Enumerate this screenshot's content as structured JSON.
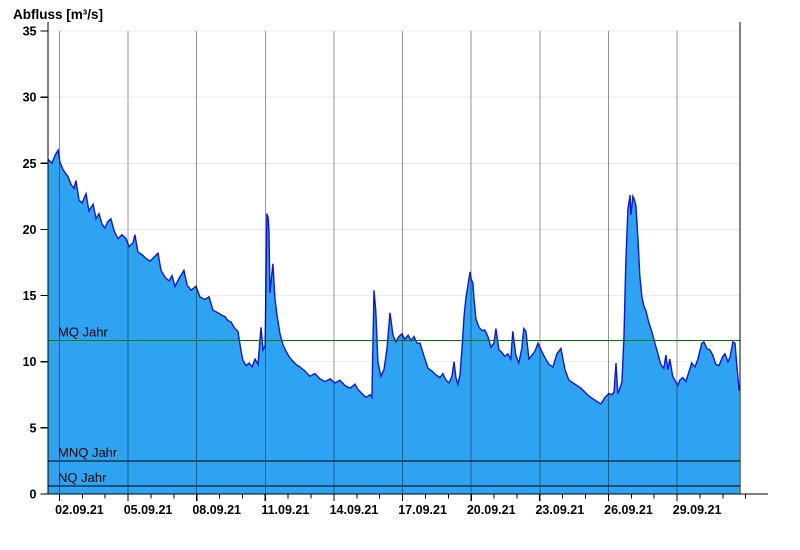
{
  "chart_data": {
    "type": "area",
    "title": "Abfluss [m³/s]",
    "series": {
      "name": "Abfluss",
      "unit": "m³/s",
      "points": [
        [
          0,
          25.3
        ],
        [
          0.17,
          25.0
        ],
        [
          0.31,
          25.6
        ],
        [
          0.44,
          26.0
        ],
        [
          0.52,
          25.1
        ],
        [
          0.66,
          24.5
        ],
        [
          0.79,
          24.2
        ],
        [
          0.87,
          24.0
        ],
        [
          1.01,
          23.4
        ],
        [
          1.14,
          23.1
        ],
        [
          1.22,
          23.7
        ],
        [
          1.36,
          22.2
        ],
        [
          1.49,
          22.0
        ],
        [
          1.66,
          22.7
        ],
        [
          1.79,
          21.4
        ],
        [
          1.97,
          21.9
        ],
        [
          2.1,
          20.8
        ],
        [
          2.23,
          21.2
        ],
        [
          2.36,
          20.4
        ],
        [
          2.49,
          20.1
        ],
        [
          2.62,
          20.6
        ],
        [
          2.75,
          20.8
        ],
        [
          2.89,
          19.9
        ],
        [
          3.06,
          19.3
        ],
        [
          3.23,
          19.6
        ],
        [
          3.41,
          19.3
        ],
        [
          3.54,
          18.7
        ],
        [
          3.72,
          19.0
        ],
        [
          3.8,
          19.6
        ],
        [
          3.93,
          18.3
        ],
        [
          4.11,
          18.1
        ],
        [
          4.28,
          17.8
        ],
        [
          4.46,
          17.6
        ],
        [
          4.63,
          17.9
        ],
        [
          4.81,
          18.2
        ],
        [
          4.94,
          16.9
        ],
        [
          5.11,
          16.4
        ],
        [
          5.29,
          16.1
        ],
        [
          5.42,
          16.5
        ],
        [
          5.55,
          15.7
        ],
        [
          5.73,
          16.3
        ],
        [
          5.94,
          16.9
        ],
        [
          6.08,
          15.8
        ],
        [
          6.25,
          15.4
        ],
        [
          6.47,
          15.7
        ],
        [
          6.64,
          14.9
        ],
        [
          6.86,
          14.7
        ],
        [
          7.04,
          14.9
        ],
        [
          7.21,
          13.9
        ],
        [
          7.43,
          13.7
        ],
        [
          7.61,
          13.5
        ],
        [
          7.74,
          13.4
        ],
        [
          7.87,
          13.1
        ],
        [
          8.0,
          13.0
        ],
        [
          8.17,
          12.5
        ],
        [
          8.3,
          12.3
        ],
        [
          8.44,
          10.8
        ],
        [
          8.52,
          10.1
        ],
        [
          8.66,
          9.7
        ],
        [
          8.79,
          9.9
        ],
        [
          8.92,
          9.6
        ],
        [
          9.05,
          10.2
        ],
        [
          9.18,
          9.8
        ],
        [
          9.31,
          12.6
        ],
        [
          9.4,
          10.9
        ],
        [
          9.49,
          11.2
        ],
        [
          9.57,
          21.2
        ],
        [
          9.62,
          20.9
        ],
        [
          9.66,
          19.8
        ],
        [
          9.7,
          15.2
        ],
        [
          9.83,
          17.4
        ],
        [
          9.92,
          14.8
        ],
        [
          10.01,
          13.5
        ],
        [
          10.14,
          12.1
        ],
        [
          10.27,
          11.3
        ],
        [
          10.4,
          10.8
        ],
        [
          10.53,
          10.4
        ],
        [
          10.67,
          10.1
        ],
        [
          10.84,
          9.8
        ],
        [
          11.01,
          9.6
        ],
        [
          11.23,
          9.3
        ],
        [
          11.45,
          8.9
        ],
        [
          11.67,
          9.1
        ],
        [
          11.89,
          8.7
        ],
        [
          12.11,
          8.5
        ],
        [
          12.33,
          8.7
        ],
        [
          12.54,
          8.4
        ],
        [
          12.76,
          8.6
        ],
        [
          12.98,
          8.2
        ],
        [
          13.2,
          8.0
        ],
        [
          13.42,
          8.3
        ],
        [
          13.55,
          7.9
        ],
        [
          13.72,
          7.6
        ],
        [
          13.9,
          7.3
        ],
        [
          14.07,
          7.5
        ],
        [
          14.16,
          7.3
        ],
        [
          14.25,
          15.4
        ],
        [
          14.33,
          13.8
        ],
        [
          14.42,
          10.0
        ],
        [
          14.55,
          8.9
        ],
        [
          14.69,
          9.4
        ],
        [
          14.82,
          11.0
        ],
        [
          14.95,
          13.7
        ],
        [
          15.08,
          12.0
        ],
        [
          15.21,
          11.5
        ],
        [
          15.34,
          11.9
        ],
        [
          15.47,
          12.1
        ],
        [
          15.6,
          11.7
        ],
        [
          15.74,
          12.0
        ],
        [
          15.87,
          11.6
        ],
        [
          16.0,
          11.9
        ],
        [
          16.13,
          11.4
        ],
        [
          16.26,
          11.4
        ],
        [
          16.44,
          10.4
        ],
        [
          16.61,
          9.5
        ],
        [
          16.78,
          9.3
        ],
        [
          16.96,
          9.0
        ],
        [
          17.13,
          8.8
        ],
        [
          17.26,
          9.1
        ],
        [
          17.4,
          8.6
        ],
        [
          17.53,
          8.4
        ],
        [
          17.66,
          8.9
        ],
        [
          17.75,
          10.0
        ],
        [
          17.83,
          8.8
        ],
        [
          17.92,
          8.3
        ],
        [
          18.01,
          9.0
        ],
        [
          18.1,
          11.1
        ],
        [
          18.19,
          13.5
        ],
        [
          18.27,
          14.8
        ],
        [
          18.36,
          15.8
        ],
        [
          18.45,
          16.8
        ],
        [
          18.49,
          16.3
        ],
        [
          18.58,
          15.9
        ],
        [
          18.62,
          14.7
        ],
        [
          18.71,
          13.2
        ],
        [
          18.84,
          12.6
        ],
        [
          18.97,
          12.35
        ],
        [
          19.1,
          12.4
        ],
        [
          19.23,
          11.9
        ],
        [
          19.36,
          11.1
        ],
        [
          19.49,
          11.4
        ],
        [
          19.58,
          12.5
        ],
        [
          19.71,
          10.9
        ],
        [
          19.84,
          10.7
        ],
        [
          19.97,
          10.4
        ],
        [
          20.1,
          10.6
        ],
        [
          20.23,
          10.2
        ],
        [
          20.32,
          12.3
        ],
        [
          20.45,
          10.5
        ],
        [
          20.58,
          9.9
        ],
        [
          20.71,
          11.0
        ],
        [
          20.8,
          12.5
        ],
        [
          20.89,
          12.3
        ],
        [
          21.02,
          10.2
        ],
        [
          21.16,
          10.5
        ],
        [
          21.29,
          10.8
        ],
        [
          21.42,
          11.4
        ],
        [
          21.55,
          10.9
        ],
        [
          21.72,
          10.3
        ],
        [
          21.9,
          9.8
        ],
        [
          22.07,
          9.6
        ],
        [
          22.25,
          10.6
        ],
        [
          22.42,
          11.0
        ],
        [
          22.6,
          9.4
        ],
        [
          22.77,
          8.6
        ],
        [
          22.95,
          8.4
        ],
        [
          23.12,
          8.2
        ],
        [
          23.3,
          8.0
        ],
        [
          23.47,
          7.7
        ],
        [
          23.65,
          7.4
        ],
        [
          23.82,
          7.2
        ],
        [
          24.0,
          7.0
        ],
        [
          24.17,
          6.8
        ],
        [
          24.35,
          7.3
        ],
        [
          24.52,
          7.6
        ],
        [
          24.65,
          7.5
        ],
        [
          24.74,
          7.7
        ],
        [
          24.83,
          9.9
        ],
        [
          24.91,
          7.6
        ],
        [
          25.0,
          8.0
        ],
        [
          25.09,
          8.5
        ],
        [
          25.18,
          12.0
        ],
        [
          25.26,
          17.5
        ],
        [
          25.35,
          21.5
        ],
        [
          25.44,
          22.6
        ],
        [
          25.48,
          21.1
        ],
        [
          25.57,
          22.5
        ],
        [
          25.62,
          22.3
        ],
        [
          25.7,
          21.8
        ],
        [
          25.79,
          19.2
        ],
        [
          25.87,
          16.5
        ],
        [
          25.96,
          14.9
        ],
        [
          26.05,
          14.2
        ],
        [
          26.13,
          13.9
        ],
        [
          26.26,
          13.0
        ],
        [
          26.39,
          12.3
        ],
        [
          26.53,
          11.4
        ],
        [
          26.66,
          10.6
        ],
        [
          26.79,
          9.8
        ],
        [
          26.92,
          9.5
        ],
        [
          27.01,
          10.5
        ],
        [
          27.1,
          9.4
        ],
        [
          27.18,
          10.2
        ],
        [
          27.31,
          8.9
        ],
        [
          27.44,
          8.5
        ],
        [
          27.53,
          8.2
        ],
        [
          27.62,
          8.6
        ],
        [
          27.75,
          8.8
        ],
        [
          27.88,
          8.5
        ],
        [
          28.01,
          9.2
        ],
        [
          28.14,
          9.9
        ],
        [
          28.28,
          9.6
        ],
        [
          28.41,
          10.2
        ],
        [
          28.58,
          11.4
        ],
        [
          28.67,
          11.5
        ],
        [
          28.8,
          11.0
        ],
        [
          28.93,
          10.9
        ],
        [
          29.06,
          10.5
        ],
        [
          29.19,
          9.8
        ],
        [
          29.33,
          9.7
        ],
        [
          29.5,
          10.4
        ],
        [
          29.59,
          10.6
        ],
        [
          29.72,
          10.0
        ],
        [
          29.81,
          10.3
        ],
        [
          29.94,
          11.5
        ],
        [
          30.03,
          11.4
        ],
        [
          30.1,
          9.9
        ],
        [
          30.16,
          8.9
        ],
        [
          30.21,
          7.8
        ]
      ]
    },
    "x_axis": {
      "labels": [
        "02.09.21",
        "05.09.21",
        "08.09.21",
        "11.09.21",
        "14.09.21",
        "17.09.21",
        "20.09.21",
        "23.09.21",
        "26.09.21",
        "29.09.21"
      ],
      "label_positions": [
        0.5,
        3.5,
        6.5,
        9.5,
        12.5,
        15.5,
        18.5,
        21.5,
        24.5,
        27.5
      ],
      "unit": "days",
      "range": [
        0,
        30.21
      ],
      "minor_tick_step": 1,
      "grid": true
    },
    "y_axis": {
      "min": 0,
      "max": 35,
      "tick_step": 5,
      "unit": "m³/s",
      "grid": true
    },
    "reference_lines": [
      {
        "label": "MQ Jahr",
        "value": 11.6,
        "color": "#007a00"
      },
      {
        "label": "MNQ Jahr",
        "value": 2.5,
        "color": "#000000"
      },
      {
        "label": "NQ Jahr",
        "value": 0.6,
        "color": "#000000"
      }
    ],
    "colors": {
      "area_fill": "#2ea3f2",
      "area_stroke": "#0b16dd",
      "mq_line": "#007a00",
      "axis": "#000000",
      "h_grid": "#ebebeb",
      "v_grid": "rgba(0,0,0,0.42)"
    },
    "legend": null
  }
}
